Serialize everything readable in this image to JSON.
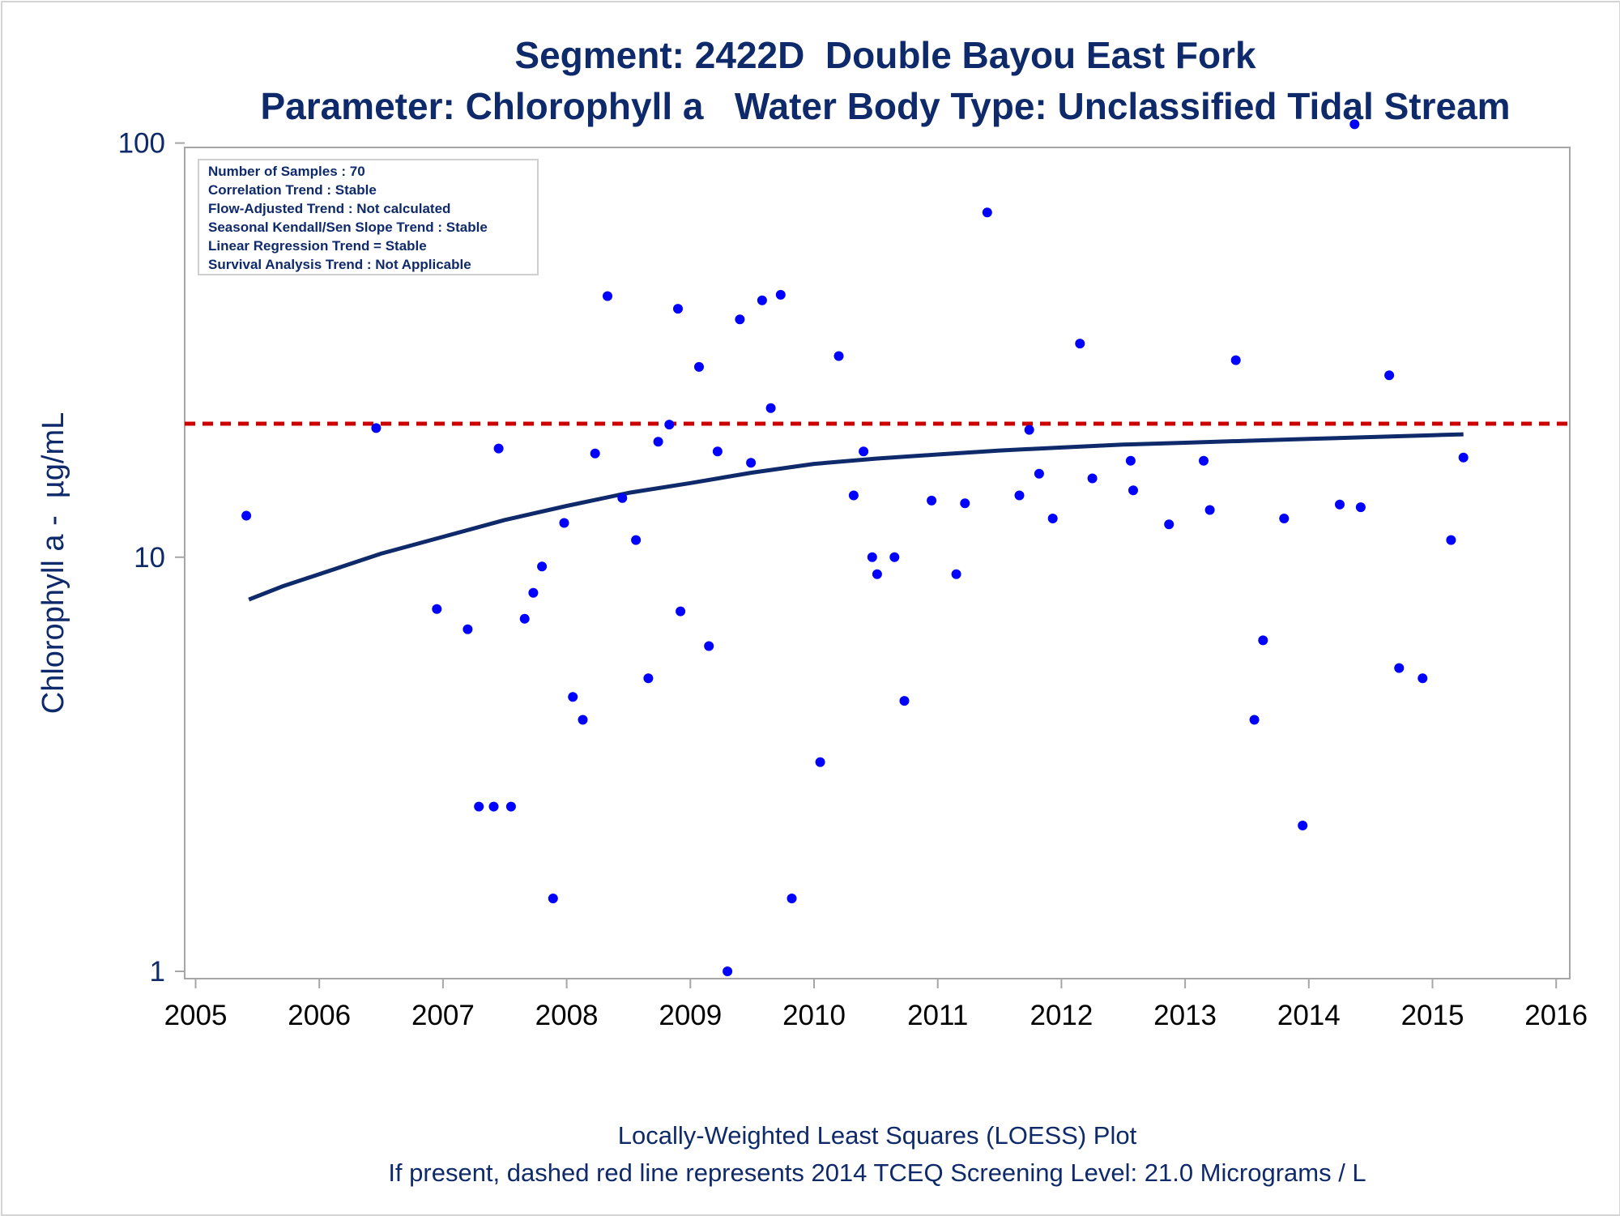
{
  "chart_data": {
    "type": "scatter",
    "title": "Segment: 2422D  Double Bayou East Fork",
    "subtitle": "Parameter: Chlorophyll a   Water Body Type: Unclassified Tidal Stream",
    "ylabel": "Chlorophyll a -  µg/mL",
    "xlabel": "",
    "x_ticks": [
      "2005",
      "2006",
      "2007",
      "2008",
      "2009",
      "2010",
      "2011",
      "2012",
      "2013",
      "2014",
      "2015",
      "2016"
    ],
    "y_ticks": [
      "1",
      "10",
      "100"
    ],
    "xlim": [
      2005,
      2016
    ],
    "ylim": [
      0.96,
      125
    ],
    "y_scale": "log",
    "grid": false,
    "stats_box": {
      "placement": "top-left",
      "lines": [
        "Number of Samples : 70",
        "Correlation Trend : Stable",
        "Flow-Adjusted Trend : Not calculated",
        "Seasonal Kendall/Sen Slope Trend : Stable",
        "Linear Regression Trend = Stable",
        "Survival Analysis Trend : Not Applicable"
      ]
    },
    "reference_line": {
      "value": 21.0,
      "style": "dashed",
      "color": "#cc0000"
    },
    "footnotes": [
      "Locally-Weighted Least Squares (LOESS) Plot",
      "If present, dashed red line represents 2014 TCEQ Screening Level: 21.0 Micrograms / L"
    ],
    "series": [
      {
        "type": "scatter",
        "color": "#0000ff",
        "points": [
          {
            "x": 2005.41,
            "y": 12.6
          },
          {
            "x": 2006.46,
            "y": 20.5
          },
          {
            "x": 2006.95,
            "y": 7.5
          },
          {
            "x": 2007.2,
            "y": 6.7
          },
          {
            "x": 2007.29,
            "y": 2.5
          },
          {
            "x": 2007.41,
            "y": 2.5
          },
          {
            "x": 2007.45,
            "y": 18.3
          },
          {
            "x": 2007.55,
            "y": 2.5
          },
          {
            "x": 2007.66,
            "y": 7.1
          },
          {
            "x": 2007.73,
            "y": 8.2
          },
          {
            "x": 2007.8,
            "y": 9.5
          },
          {
            "x": 2007.89,
            "y": 1.5
          },
          {
            "x": 2007.98,
            "y": 12.1
          },
          {
            "x": 2008.05,
            "y": 4.6
          },
          {
            "x": 2008.13,
            "y": 4.05
          },
          {
            "x": 2008.23,
            "y": 17.8
          },
          {
            "x": 2008.33,
            "y": 42.7
          },
          {
            "x": 2008.45,
            "y": 13.9
          },
          {
            "x": 2008.56,
            "y": 11.0
          },
          {
            "x": 2008.66,
            "y": 5.1
          },
          {
            "x": 2008.74,
            "y": 19.0
          },
          {
            "x": 2008.83,
            "y": 20.9
          },
          {
            "x": 2008.9,
            "y": 39.8
          },
          {
            "x": 2008.92,
            "y": 7.4
          },
          {
            "x": 2009.07,
            "y": 28.8
          },
          {
            "x": 2009.15,
            "y": 6.1
          },
          {
            "x": 2009.22,
            "y": 18.0
          },
          {
            "x": 2009.3,
            "y": 1.0
          },
          {
            "x": 2009.4,
            "y": 37.5
          },
          {
            "x": 2009.49,
            "y": 16.9
          },
          {
            "x": 2009.58,
            "y": 41.7
          },
          {
            "x": 2009.65,
            "y": 22.9
          },
          {
            "x": 2009.73,
            "y": 43.0
          },
          {
            "x": 2009.82,
            "y": 1.5
          },
          {
            "x": 2010.05,
            "y": 3.2
          },
          {
            "x": 2010.2,
            "y": 30.6
          },
          {
            "x": 2010.32,
            "y": 14.1
          },
          {
            "x": 2010.4,
            "y": 18.0
          },
          {
            "x": 2010.47,
            "y": 10.0
          },
          {
            "x": 2010.51,
            "y": 9.1
          },
          {
            "x": 2010.65,
            "y": 10.0
          },
          {
            "x": 2010.73,
            "y": 4.5
          },
          {
            "x": 2010.95,
            "y": 13.7
          },
          {
            "x": 2011.15,
            "y": 9.1
          },
          {
            "x": 2011.22,
            "y": 13.5
          },
          {
            "x": 2011.4,
            "y": 68.0
          },
          {
            "x": 2011.66,
            "y": 14.1
          },
          {
            "x": 2011.74,
            "y": 20.3
          },
          {
            "x": 2011.82,
            "y": 15.9
          },
          {
            "x": 2011.93,
            "y": 12.4
          },
          {
            "x": 2012.15,
            "y": 32.8
          },
          {
            "x": 2012.25,
            "y": 15.5
          },
          {
            "x": 2012.56,
            "y": 17.1
          },
          {
            "x": 2012.58,
            "y": 14.5
          },
          {
            "x": 2012.87,
            "y": 12.0
          },
          {
            "x": 2013.15,
            "y": 17.1
          },
          {
            "x": 2013.2,
            "y": 13.0
          },
          {
            "x": 2013.41,
            "y": 29.9
          },
          {
            "x": 2013.56,
            "y": 4.05
          },
          {
            "x": 2013.63,
            "y": 6.3
          },
          {
            "x": 2013.8,
            "y": 12.4
          },
          {
            "x": 2013.95,
            "y": 2.25
          },
          {
            "x": 2014.25,
            "y": 13.4
          },
          {
            "x": 2014.37,
            "y": 111.0
          },
          {
            "x": 2014.42,
            "y": 13.2
          },
          {
            "x": 2014.65,
            "y": 27.5
          },
          {
            "x": 2014.73,
            "y": 5.4
          },
          {
            "x": 2014.92,
            "y": 5.1
          },
          {
            "x": 2015.15,
            "y": 11.0
          },
          {
            "x": 2015.25,
            "y": 17.4
          }
        ]
      },
      {
        "type": "line",
        "color": "#0f2a6b",
        "points": [
          {
            "x": 2005.43,
            "y": 7.9
          },
          {
            "x": 2005.7,
            "y": 8.5
          },
          {
            "x": 2006.0,
            "y": 9.1
          },
          {
            "x": 2006.5,
            "y": 10.2
          },
          {
            "x": 2007.0,
            "y": 11.2
          },
          {
            "x": 2007.5,
            "y": 12.3
          },
          {
            "x": 2008.0,
            "y": 13.3
          },
          {
            "x": 2008.5,
            "y": 14.3
          },
          {
            "x": 2009.0,
            "y": 15.1
          },
          {
            "x": 2009.5,
            "y": 16.0
          },
          {
            "x": 2010.0,
            "y": 16.8
          },
          {
            "x": 2010.5,
            "y": 17.3
          },
          {
            "x": 2011.0,
            "y": 17.7
          },
          {
            "x": 2011.5,
            "y": 18.1
          },
          {
            "x": 2012.0,
            "y": 18.4
          },
          {
            "x": 2012.5,
            "y": 18.7
          },
          {
            "x": 2013.0,
            "y": 18.9
          },
          {
            "x": 2013.5,
            "y": 19.1
          },
          {
            "x": 2014.0,
            "y": 19.3
          },
          {
            "x": 2014.5,
            "y": 19.5
          },
          {
            "x": 2015.0,
            "y": 19.7
          },
          {
            "x": 2015.25,
            "y": 19.8
          }
        ]
      }
    ]
  }
}
